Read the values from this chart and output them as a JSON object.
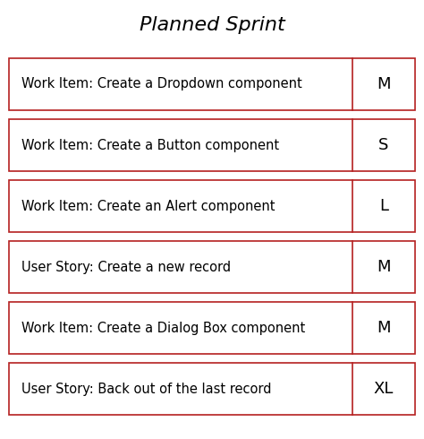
{
  "title": "Planned Sprint",
  "title_fontsize": 16,
  "title_style": "italic",
  "background_color": "#ffffff",
  "border_color": "#b52020",
  "text_color": "#000000",
  "items": [
    {
      "label": "Work Item: Create a Dropdown component",
      "size": "M"
    },
    {
      "label": "Work Item: Create a Button component",
      "size": "S"
    },
    {
      "label": "Work Item: Create an Alert component",
      "size": "L"
    },
    {
      "label": "User Story: Create a new record",
      "size": "M"
    },
    {
      "label": "Work Item: Create a Dialog Box component",
      "size": "M"
    },
    {
      "label": "User Story: Back out of the last record",
      "size": "XL"
    }
  ],
  "label_fontsize": 10.5,
  "size_fontsize": 13,
  "border_linewidth": 1.2
}
